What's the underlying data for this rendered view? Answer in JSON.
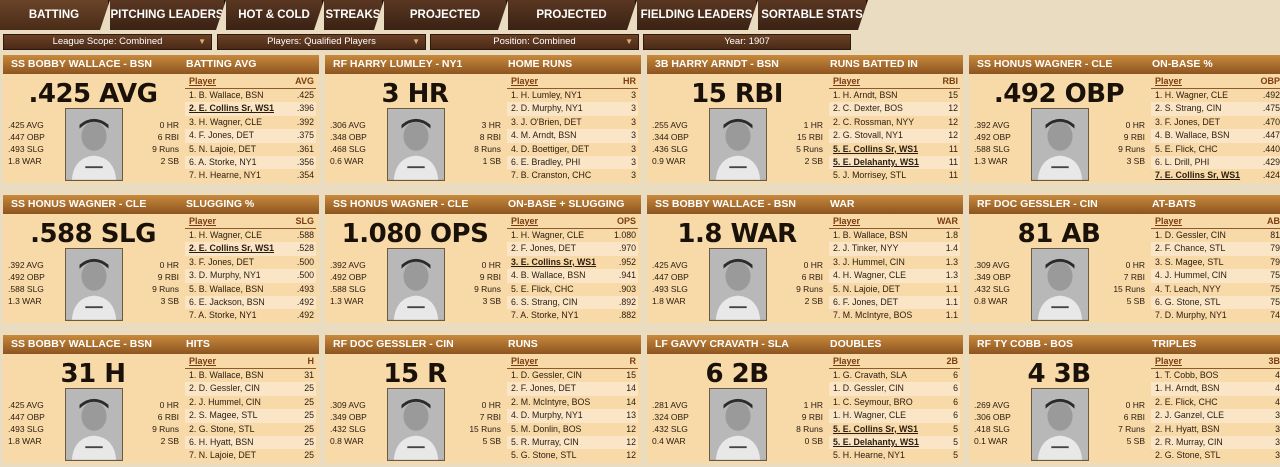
{
  "tabs": [
    "BATTING LEADERS",
    "PITCHING LEADERS",
    "HOT & COLD",
    "STREAKS",
    "PROJECTED BATTING",
    "PROJECTED PITCHING",
    "FIELDING LEADERS",
    "SORTABLE STATS"
  ],
  "filters": [
    "League Scope: Combined",
    "Players: Qualified Players",
    "Position: Combined",
    "Year: 1907"
  ],
  "cards": [
    {
      "player": "SS BOBBY WALLACE - BSN",
      "stat": "BATTING AVG",
      "big": "0.425 AVG",
      "bigd": ".425 AVG",
      "col": "AVG",
      "left": [
        ".425 AVG",
        ".447 OBP",
        ".493 SLG",
        "1.8 WAR"
      ],
      "right": [
        "0 HR",
        "6 RBI",
        "9 Runs",
        "2 SB"
      ],
      "rows": [
        [
          "1. B. Wallace, BSN",
          ".425",
          false
        ],
        [
          "2. E. Collins Sr, WS1",
          ".396",
          true
        ],
        [
          "3. H. Wagner, CLE",
          ".392",
          false
        ],
        [
          "4. F. Jones, DET",
          ".375",
          false
        ],
        [
          "5. N. Lajoie, DET",
          ".361",
          false
        ],
        [
          "6. A. Storke, NY1",
          ".356",
          false
        ],
        [
          "7. H. Hearne, NY1",
          ".354",
          false
        ]
      ]
    },
    {
      "player": "RF HARRY LUMLEY - NY1",
      "stat": "HOME RUNS",
      "bigd": "3 HR",
      "col": "HR",
      "left": [
        ".306 AVG",
        ".348 OBP",
        ".468 SLG",
        "0.6 WAR"
      ],
      "right": [
        "3 HR",
        "8 RBI",
        "8 Runs",
        "1 SB"
      ],
      "rows": [
        [
          "1. H. Lumley, NY1",
          "3",
          false
        ],
        [
          "2. D. Murphy, NY1",
          "3",
          false
        ],
        [
          "3. J. O'Brien, DET",
          "3",
          false
        ],
        [
          "4. M. Arndt, BSN",
          "3",
          false
        ],
        [
          "4. D. Boettiger, DET",
          "3",
          false
        ],
        [
          "6. E. Bradley, PHI",
          "3",
          false
        ],
        [
          "7. B. Cranston, CHC",
          "3",
          false
        ]
      ]
    },
    {
      "player": "3B HARRY ARNDT - BSN",
      "stat": "RUNS BATTED IN",
      "bigd": "15 RBI",
      "col": "RBI",
      "left": [
        ".255 AVG",
        ".344 OBP",
        ".436 SLG",
        "0.9 WAR"
      ],
      "right": [
        "1 HR",
        "15 RBI",
        "5 Runs",
        "2 SB"
      ],
      "rows": [
        [
          "1. H. Arndt, BSN",
          "15",
          false
        ],
        [
          "2. C. Dexter, BOS",
          "12",
          false
        ],
        [
          "2. C. Rossman, NYY",
          "12",
          false
        ],
        [
          "2. G. Stovall, NY1",
          "12",
          false
        ],
        [
          "5. E. Collins Sr, WS1",
          "11",
          true
        ],
        [
          "5. E. Delahanty, WS1",
          "11",
          true
        ],
        [
          "5. J. Morrisey, STL",
          "11",
          false
        ]
      ]
    },
    {
      "player": "SS HONUS WAGNER - CLE",
      "stat": "ON-BASE %",
      "bigd": ".492 OBP",
      "col": "OBP",
      "left": [
        ".392 AVG",
        ".492 OBP",
        ".588 SLG",
        "1.3 WAR"
      ],
      "right": [
        "0 HR",
        "9 RBI",
        "9 Runs",
        "3 SB"
      ],
      "rows": [
        [
          "1. H. Wagner, CLE",
          ".492",
          false
        ],
        [
          "2. S. Strang, CIN",
          ".475",
          false
        ],
        [
          "3. F. Jones, DET",
          ".470",
          false
        ],
        [
          "4. B. Wallace, BSN",
          ".447",
          false
        ],
        [
          "5. E. Flick, CHC",
          ".440",
          false
        ],
        [
          "6. L. Drill, PHI",
          ".429",
          false
        ],
        [
          "7. E. Collins Sr, WS1",
          ".424",
          true
        ]
      ]
    },
    {
      "player": "SS HONUS WAGNER - CLE",
      "stat": "SLUGGING %",
      "bigd": ".588 SLG",
      "col": "SLG",
      "left": [
        ".392 AVG",
        ".492 OBP",
        ".588 SLG",
        "1.3 WAR"
      ],
      "right": [
        "0 HR",
        "9 RBI",
        "9 Runs",
        "3 SB"
      ],
      "rows": [
        [
          "1. H. Wagner, CLE",
          ".588",
          false
        ],
        [
          "2. E. Collins Sr, WS1",
          ".528",
          true
        ],
        [
          "3. F. Jones, DET",
          ".500",
          false
        ],
        [
          "3. D. Murphy, NY1",
          ".500",
          false
        ],
        [
          "5. B. Wallace, BSN",
          ".493",
          false
        ],
        [
          "6. E. Jackson, BSN",
          ".492",
          false
        ],
        [
          "7. A. Storke, NY1",
          ".492",
          false
        ]
      ]
    },
    {
      "player": "SS HONUS WAGNER - CLE",
      "stat": "ON-BASE + SLUGGING",
      "bigd": "1.080 OPS",
      "col": "OPS",
      "left": [
        ".392 AVG",
        ".492 OBP",
        ".588 SLG",
        "1.3 WAR"
      ],
      "right": [
        "0 HR",
        "9 RBI",
        "9 Runs",
        "3 SB"
      ],
      "rows": [
        [
          "1. H. Wagner, CLE",
          "1.080",
          false
        ],
        [
          "2. F. Jones, DET",
          ".970",
          false
        ],
        [
          "3. E. Collins Sr, WS1",
          ".952",
          true
        ],
        [
          "4. B. Wallace, BSN",
          ".941",
          false
        ],
        [
          "5. E. Flick, CHC",
          ".903",
          false
        ],
        [
          "6. S. Strang, CIN",
          ".892",
          false
        ],
        [
          "7. A. Storke, NY1",
          ".882",
          false
        ]
      ]
    },
    {
      "player": "SS BOBBY WALLACE - BSN",
      "stat": "WAR",
      "bigd": "1.8 WAR",
      "col": "WAR",
      "left": [
        ".425 AVG",
        ".447 OBP",
        ".493 SLG",
        "1.8 WAR"
      ],
      "right": [
        "0 HR",
        "6 RBI",
        "9 Runs",
        "2 SB"
      ],
      "rows": [
        [
          "1. B. Wallace, BSN",
          "1.8",
          false
        ],
        [
          "2. J. Tinker, NYY",
          "1.4",
          false
        ],
        [
          "3. J. Hummel, CIN",
          "1.3",
          false
        ],
        [
          "4. H. Wagner, CLE",
          "1.3",
          false
        ],
        [
          "5. N. Lajoie, DET",
          "1.1",
          false
        ],
        [
          "6. F. Jones, DET",
          "1.1",
          false
        ],
        [
          "7. M. McIntyre, BOS",
          "1.1",
          false
        ]
      ]
    },
    {
      "player": "RF DOC GESSLER - CIN",
      "stat": "AT-BATS",
      "bigd": "81 AB",
      "col": "AB",
      "left": [
        ".309 AVG",
        ".349 OBP",
        ".432 SLG",
        "0.8 WAR"
      ],
      "right": [
        "0 HR",
        "7 RBI",
        "15 Runs",
        "5 SB"
      ],
      "rows": [
        [
          "1. D. Gessler, CIN",
          "81",
          false
        ],
        [
          "2. F. Chance, STL",
          "79",
          false
        ],
        [
          "3. S. Magee, STL",
          "79",
          false
        ],
        [
          "4. J. Hummel, CIN",
          "75",
          false
        ],
        [
          "4. T. Leach, NYY",
          "75",
          false
        ],
        [
          "6. G. Stone, STL",
          "75",
          false
        ],
        [
          "7. D. Murphy, NY1",
          "74",
          false
        ]
      ]
    },
    {
      "player": "SS BOBBY WALLACE - BSN",
      "stat": "HITS",
      "bigd": "31 H",
      "col": "H",
      "left": [
        ".425 AVG",
        ".447 OBP",
        ".493 SLG",
        "1.8 WAR"
      ],
      "right": [
        "0 HR",
        "6 RBI",
        "9 Runs",
        "2 SB"
      ],
      "rows": [
        [
          "1. B. Wallace, BSN",
          "31",
          false
        ],
        [
          "2. D. Gessler, CIN",
          "25",
          false
        ],
        [
          "2. J. Hummel, CIN",
          "25",
          false
        ],
        [
          "2. S. Magee, STL",
          "25",
          false
        ],
        [
          "2. G. Stone, STL",
          "25",
          false
        ],
        [
          "6. H. Hyatt, BSN",
          "25",
          false
        ],
        [
          "7. N. Lajoie, DET",
          "25",
          false
        ]
      ]
    },
    {
      "player": "RF DOC GESSLER - CIN",
      "stat": "RUNS",
      "bigd": "15 R",
      "col": "R",
      "left": [
        ".309 AVG",
        ".349 OBP",
        ".432 SLG",
        "0.8 WAR"
      ],
      "right": [
        "0 HR",
        "7 RBI",
        "15 Runs",
        "5 SB"
      ],
      "rows": [
        [
          "1. D. Gessler, CIN",
          "15",
          false
        ],
        [
          "2. F. Jones, DET",
          "14",
          false
        ],
        [
          "2. M. McIntyre, BOS",
          "14",
          false
        ],
        [
          "4. D. Murphy, NY1",
          "13",
          false
        ],
        [
          "5. M. Donlin, BOS",
          "12",
          false
        ],
        [
          "5. R. Murray, CIN",
          "12",
          false
        ],
        [
          "5. G. Stone, STL",
          "12",
          false
        ]
      ]
    },
    {
      "player": "LF GAVVY CRAVATH - SLA",
      "stat": "DOUBLES",
      "bigd": "6 2B",
      "col": "2B",
      "left": [
        ".281 AVG",
        ".324 OBP",
        ".432 SLG",
        "0.4 WAR"
      ],
      "right": [
        "1 HR",
        "9 RBI",
        "8 Runs",
        "0 SB"
      ],
      "rows": [
        [
          "1. G. Cravath, SLA",
          "6",
          false
        ],
        [
          "1. D. Gessler, CIN",
          "6",
          false
        ],
        [
          "1. C. Seymour, BRO",
          "6",
          false
        ],
        [
          "1. H. Wagner, CLE",
          "6",
          false
        ],
        [
          "5. E. Collins Sr, WS1",
          "5",
          true
        ],
        [
          "5. E. Delahanty, WS1",
          "5",
          true
        ],
        [
          "5. H. Hearne, NY1",
          "5",
          false
        ]
      ]
    },
    {
      "player": "RF TY COBB - BOS",
      "stat": "TRIPLES",
      "bigd": "4 3B",
      "col": "3B",
      "left": [
        ".269 AVG",
        ".306 OBP",
        ".418 SLG",
        "0.1 WAR"
      ],
      "right": [
        "0 HR",
        "6 RBI",
        "7 Runs",
        "5 SB"
      ],
      "rows": [
        [
          "1. T. Cobb, BOS",
          "4",
          false
        ],
        [
          "1. H. Arndt, BSN",
          "4",
          false
        ],
        [
          "2. E. Flick, CHC",
          "4",
          false
        ],
        [
          "2. J. Ganzel, CLE",
          "3",
          false
        ],
        [
          "2. H. Hyatt, BSN",
          "3",
          false
        ],
        [
          "2. R. Murray, CIN",
          "3",
          false
        ],
        [
          "2. G. Stone, STL",
          "3",
          false
        ]
      ]
    }
  ]
}
